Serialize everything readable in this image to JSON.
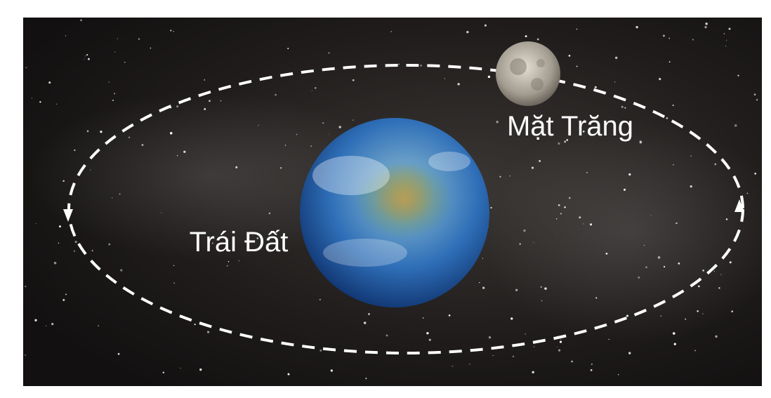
{
  "labels": {
    "moon": "Mặt Trăng",
    "earth": "Trái Đất"
  }
}
